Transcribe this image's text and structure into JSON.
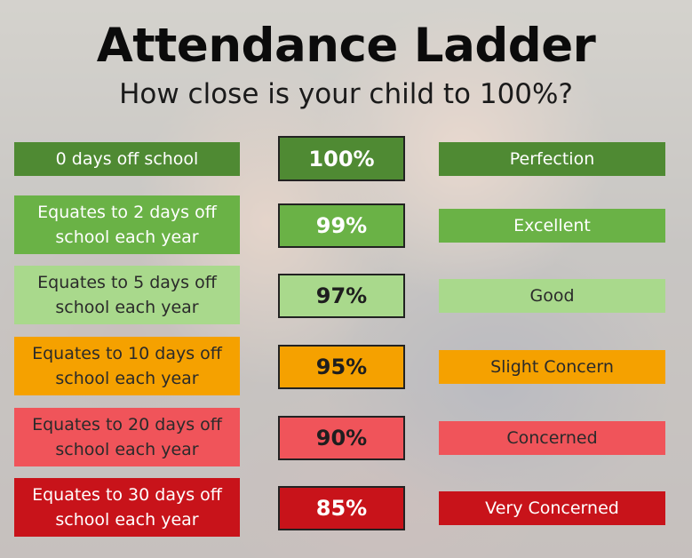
{
  "title": "Attendance Ladder",
  "subtitle": "How close is your child to 100%?",
  "rows": [
    {
      "description": "0 days off school",
      "percent": "100%",
      "label": "Perfection",
      "color": "#4f8a33",
      "pct_color": "#4f8a33"
    },
    {
      "description": "Equates to 2 days off school each year",
      "percent": "99%",
      "label": "Excellent",
      "color": "#6ab246",
      "pct_color": "#6ab246"
    },
    {
      "description": "Equates to 5 days off school each year",
      "percent": "97%",
      "label": "Good",
      "color": "#a9d98c",
      "pct_color": "#a9d98c"
    },
    {
      "description": "Equates to 10 days off school each year",
      "percent": "95%",
      "label": "Slight Concern",
      "color": "#f5a100",
      "pct_color": "#f5a100"
    },
    {
      "description": "Equates to 20 days off school each year",
      "percent": "90%",
      "label": "Concerned",
      "color": "#f0545a",
      "pct_color": "#f0545a"
    },
    {
      "description": "Equates to 30 days off school each year",
      "percent": "85%",
      "label": "Very Concerned",
      "color": "#c8131a",
      "pct_color": "#c8131a"
    }
  ]
}
